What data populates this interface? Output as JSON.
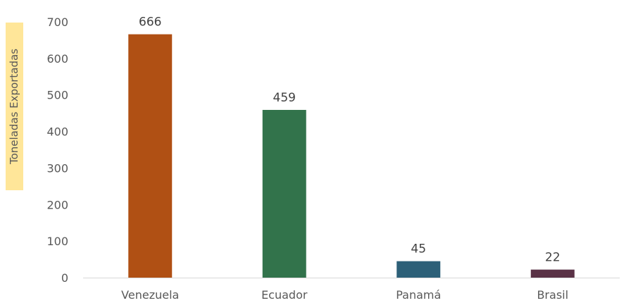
{
  "chart_data": {
    "type": "bar",
    "title": "",
    "xlabel": "",
    "ylabel": "Toneladas Exportadas",
    "categories": [
      "Venezuela",
      "Ecuador",
      "Panamá",
      "Brasil"
    ],
    "values": [
      666,
      459,
      45,
      22
    ],
    "data_labels": [
      "666",
      "459",
      "45",
      "22"
    ],
    "colors": [
      "#b05014",
      "#32734b",
      "#2d6078",
      "#5a3246"
    ],
    "ylim": [
      0,
      700
    ],
    "yticks": [
      0,
      100,
      200,
      300,
      400,
      500,
      600,
      700
    ],
    "grid": false,
    "legend": "none"
  }
}
